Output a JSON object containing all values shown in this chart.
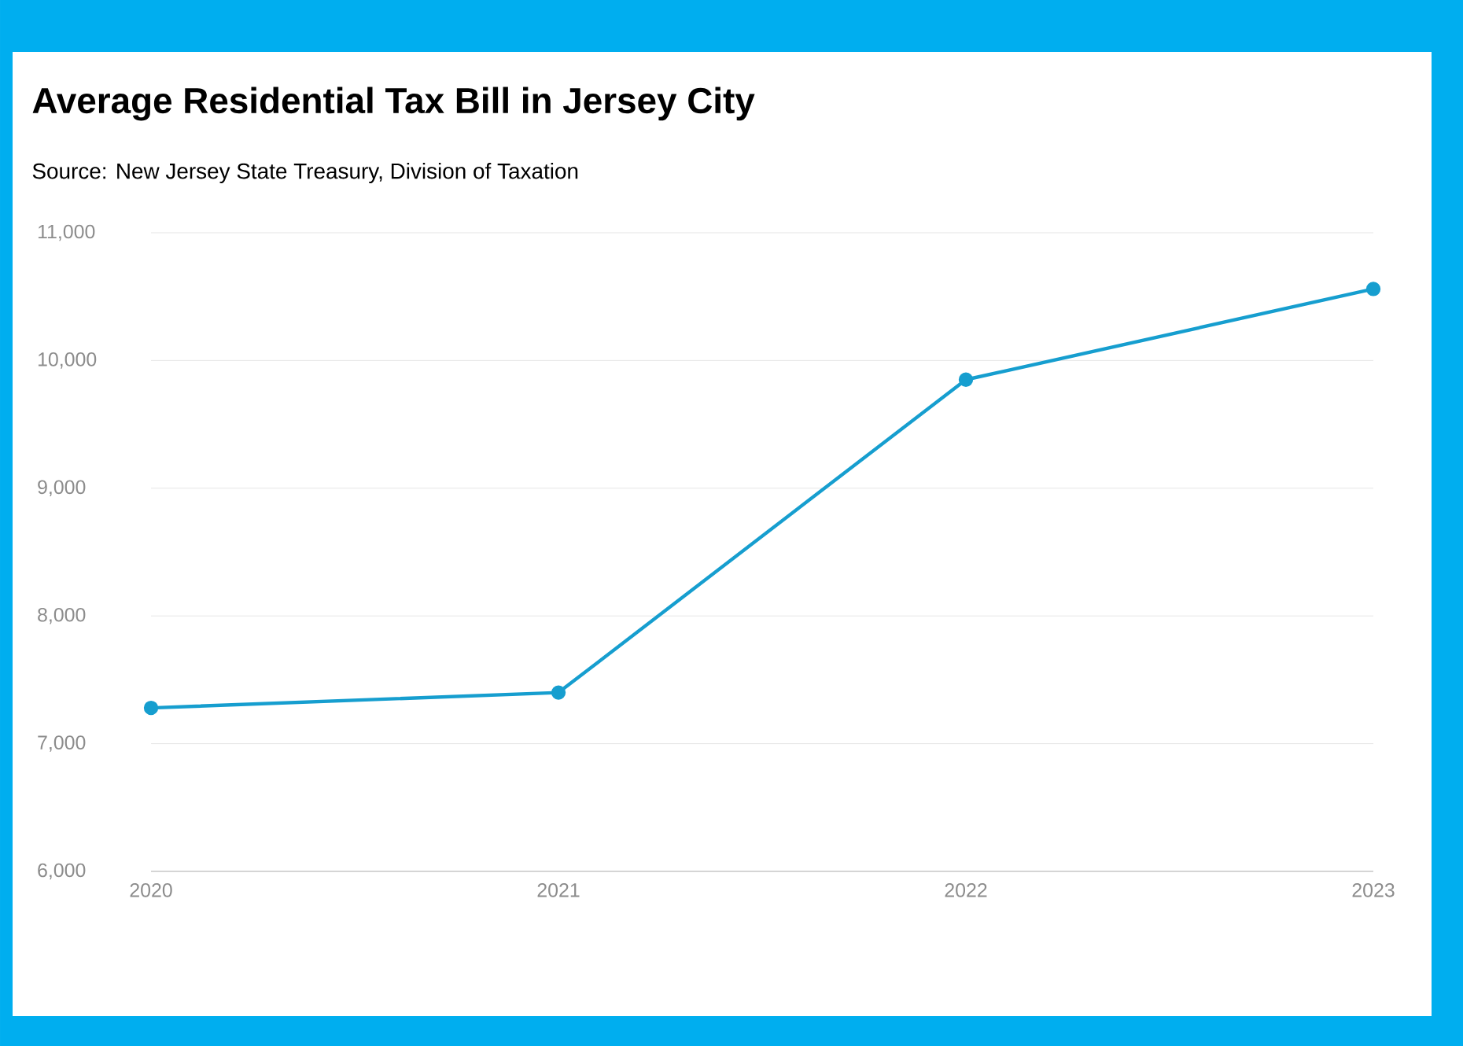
{
  "chart_data": {
    "type": "line",
    "title": "Average Residential Tax Bill in Jersey City",
    "subtitle": "Source: New Jersey State Treasury, Division of Taxation",
    "x": [
      2020,
      2021,
      2022,
      2023
    ],
    "series": [
      {
        "color": "#169ecf",
        "values": [
          7280,
          7400,
          9850,
          10560
        ]
      }
    ],
    "xlim": [
      2020,
      2023
    ],
    "xticks": [
      2020,
      2021,
      2022,
      2023
    ],
    "ylim": [
      6000,
      11000
    ],
    "yticks": [
      {
        "value": 6000,
        "label": "6,000"
      },
      {
        "value": 7000,
        "label": "7,000"
      },
      {
        "value": 8000,
        "label": "8,000"
      },
      {
        "value": 9000,
        "label": "9,000"
      },
      {
        "value": 10000,
        "label": "10,000"
      },
      {
        "value": 11000,
        "label": "11,000"
      }
    ],
    "grid": "y",
    "marker": "circle",
    "line_style": "solid"
  }
}
